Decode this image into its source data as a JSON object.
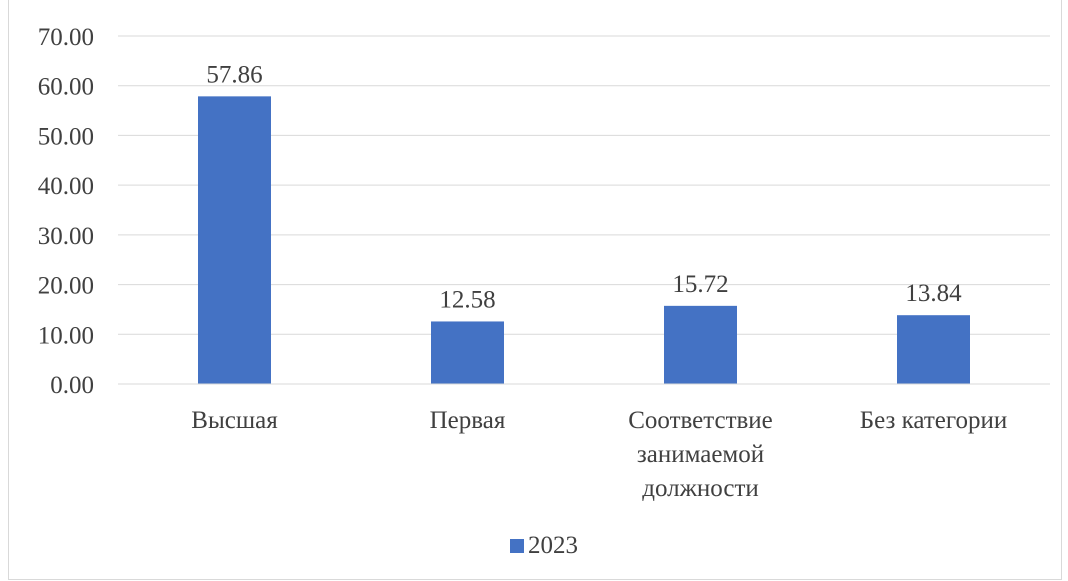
{
  "chart_data": {
    "type": "bar",
    "title": "",
    "categories": [
      [
        "Высшая"
      ],
      [
        "Первая"
      ],
      [
        "Соответствие",
        "занимаемой",
        "должности"
      ],
      [
        "Без категории"
      ]
    ],
    "series": [
      {
        "name": "2023",
        "values": [
          57.86,
          12.58,
          15.72,
          13.84
        ],
        "color": "#4472c4"
      }
    ],
    "data_labels": [
      "57.86",
      "12.58",
      "15.72",
      "13.84"
    ],
    "ylim": [
      0,
      70
    ],
    "yticks": [
      "0.00",
      "10.00",
      "20.00",
      "30.00",
      "40.00",
      "50.00",
      "60.00",
      "70.00"
    ],
    "grid": true,
    "legend_position": "bottom",
    "xlabel": "",
    "ylabel": ""
  },
  "legend": {
    "label": "2023"
  }
}
